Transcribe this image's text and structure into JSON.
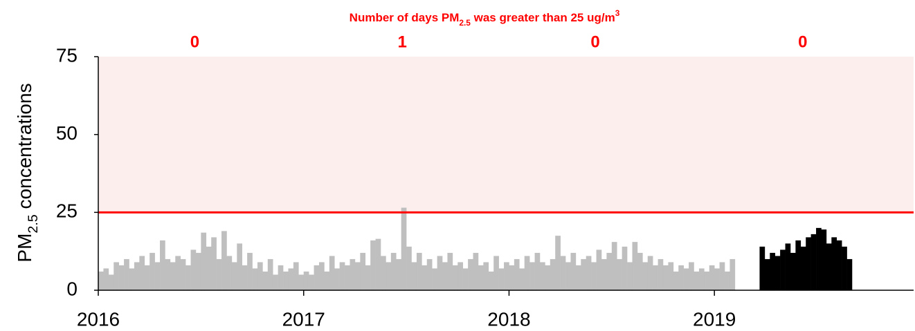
{
  "chart_data": {
    "type": "bar",
    "title": [
      "Number of days PM",
      "2.5",
      " was greater than 25 ug/m",
      "3"
    ],
    "ylabel": [
      "PM",
      "2.5",
      " concentrations"
    ],
    "xlim": [
      2016,
      2019.97
    ],
    "xticks": [
      2016,
      2017,
      2018,
      2019
    ],
    "ylim": [
      0,
      75
    ],
    "yticks": [
      0,
      25,
      50,
      75
    ],
    "threshold": 25,
    "threshold_color": "#ff0000",
    "shade_color": "#fdeeee",
    "exceedance_counts": {
      "x": [
        2016.47,
        2017.48,
        2018.42,
        2019.43
      ],
      "values": [
        0,
        1,
        0,
        0
      ],
      "color": "#ff0000"
    },
    "bar_width": 0.025,
    "series": [
      {
        "color": "#bfbfbf",
        "x": [
          2016,
          2016.025,
          2016.05,
          2016.075,
          2016.1,
          2016.125,
          2016.15,
          2016.175,
          2016.2,
          2016.225,
          2016.25,
          2016.275,
          2016.3,
          2016.325,
          2016.35,
          2016.375,
          2016.4,
          2016.425,
          2016.45,
          2016.475,
          2016.5,
          2016.525,
          2016.55,
          2016.575,
          2016.6,
          2016.625,
          2016.65,
          2016.675,
          2016.7,
          2016.725,
          2016.75,
          2016.775,
          2016.8,
          2016.825,
          2016.85,
          2016.875,
          2016.9,
          2016.925,
          2016.95,
          2016.975,
          2017,
          2017.025,
          2017.05,
          2017.075,
          2017.1,
          2017.125,
          2017.15,
          2017.175,
          2017.2,
          2017.225,
          2017.25,
          2017.275,
          2017.3,
          2017.325,
          2017.35,
          2017.375,
          2017.4,
          2017.425,
          2017.45,
          2017.475,
          2017.5,
          2017.525,
          2017.55,
          2017.575,
          2017.6,
          2017.625,
          2017.65,
          2017.675,
          2017.7,
          2017.725,
          2017.75,
          2017.775,
          2017.8,
          2017.825,
          2017.85,
          2017.875,
          2017.9,
          2017.925,
          2017.95,
          2017.975,
          2018,
          2018.025,
          2018.05,
          2018.075,
          2018.1,
          2018.125,
          2018.15,
          2018.175,
          2018.2,
          2018.225,
          2018.25,
          2018.275,
          2018.3,
          2018.325,
          2018.35,
          2018.375,
          2018.4,
          2018.425,
          2018.45,
          2018.475,
          2018.5,
          2018.525,
          2018.55,
          2018.575,
          2018.6,
          2018.625,
          2018.65,
          2018.675,
          2018.7,
          2018.725,
          2018.75,
          2018.775,
          2018.8,
          2018.825,
          2018.85,
          2018.875,
          2018.9,
          2018.925,
          2018.95,
          2018.975,
          2019,
          2019.025,
          2019.05,
          2019.075
        ],
        "values": [
          6,
          7,
          5,
          9,
          8,
          10,
          7,
          9,
          11,
          8,
          12,
          9,
          16,
          10,
          9,
          11,
          10,
          8,
          13,
          12,
          18.5,
          14,
          17,
          10,
          19,
          11,
          9,
          15,
          8,
          12,
          7,
          9,
          6,
          10,
          5,
          8,
          6,
          7,
          9,
          5,
          6,
          5,
          8,
          9,
          6,
          11,
          7,
          9,
          8,
          10,
          9,
          12,
          8,
          16,
          16.5,
          11,
          9,
          12,
          10,
          26.5,
          14,
          9,
          12,
          8,
          10,
          7,
          11,
          9,
          12,
          8,
          9,
          7,
          10,
          12,
          8,
          9,
          6,
          11,
          7,
          9,
          8,
          10,
          7,
          11,
          9,
          12,
          9,
          8,
          10,
          17.5,
          11,
          9,
          12,
          8,
          10,
          11,
          9,
          13,
          10,
          12,
          15.5,
          10,
          14,
          9,
          15.5,
          12,
          9,
          11,
          8,
          10,
          8,
          9,
          6,
          8,
          7,
          9,
          6,
          7,
          6,
          8,
          7,
          9,
          6,
          10
        ]
      },
      {
        "color": "#000000",
        "x": [
          2019.22,
          2019.245,
          2019.27,
          2019.295,
          2019.32,
          2019.345,
          2019.37,
          2019.395,
          2019.42,
          2019.445,
          2019.47,
          2019.495,
          2019.52,
          2019.545,
          2019.57,
          2019.595,
          2019.62,
          2019.645
        ],
        "values": [
          14,
          10,
          12,
          11,
          13,
          15,
          12,
          16,
          14,
          17,
          18,
          20,
          19.5,
          15,
          17,
          16,
          14,
          10
        ]
      }
    ]
  }
}
